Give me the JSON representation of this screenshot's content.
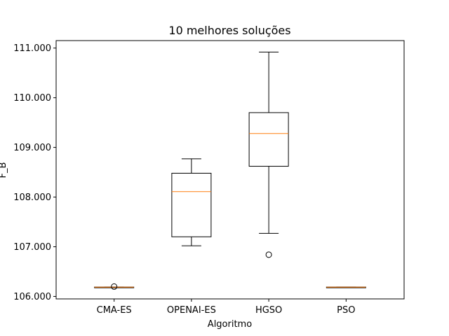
{
  "chart_data": {
    "type": "box",
    "title": "10 melhores soluções",
    "xlabel": "Algoritmo",
    "ylabel": "F_B",
    "ylim": [
      105950,
      111150
    ],
    "yticks": [
      106000,
      107000,
      108000,
      109000,
      110000,
      111000
    ],
    "ytick_labels": [
      "106.000",
      "107.000",
      "108.000",
      "109.000",
      "110.000",
      "111.000"
    ],
    "grid": false,
    "colors": {
      "box": "#000000",
      "median": "#ff7f0e",
      "background": "#ffffff"
    },
    "categories": [
      "CMA-ES",
      "OPENAI-ES",
      "HGSO",
      "PSO"
    ],
    "boxes": [
      {
        "name": "CMA-ES",
        "whisker_low": 106182,
        "q1": 106184,
        "median": 106186,
        "q3": 106188,
        "whisker_high": 106190,
        "outliers": [
          106198
        ]
      },
      {
        "name": "OPENAI-ES",
        "whisker_low": 107020,
        "q1": 107200,
        "median": 108110,
        "q3": 108480,
        "whisker_high": 108770,
        "outliers": []
      },
      {
        "name": "HGSO",
        "whisker_low": 107270,
        "q1": 108620,
        "median": 109280,
        "q3": 109700,
        "whisker_high": 110920,
        "outliers": [
          106840
        ]
      },
      {
        "name": "PSO",
        "whisker_low": 106183,
        "q1": 106184,
        "median": 106186,
        "q3": 106188,
        "whisker_high": 106189,
        "outliers": []
      }
    ]
  }
}
